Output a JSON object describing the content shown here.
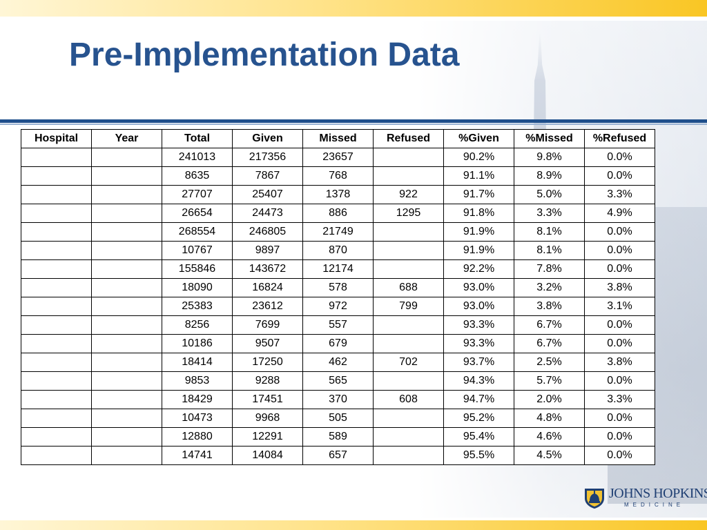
{
  "title": "Pre-Implementation Data",
  "colors": {
    "title": "#27538f",
    "rule": "#1f4f8c",
    "band": "#f9c624"
  },
  "table": {
    "headers": [
      "Hospital",
      "Year",
      "Total",
      "Given",
      "Missed",
      "Refused",
      "%Given",
      "%Missed",
      "%Refused"
    ],
    "rows": [
      [
        "",
        "",
        "241013",
        "217356",
        "23657",
        "",
        "90.2%",
        "9.8%",
        "0.0%"
      ],
      [
        "",
        "",
        "8635",
        "7867",
        "768",
        "",
        "91.1%",
        "8.9%",
        "0.0%"
      ],
      [
        "",
        "",
        "27707",
        "25407",
        "1378",
        "922",
        "91.7%",
        "5.0%",
        "3.3%"
      ],
      [
        "",
        "",
        "26654",
        "24473",
        "886",
        "1295",
        "91.8%",
        "3.3%",
        "4.9%"
      ],
      [
        "",
        "",
        "268554",
        "246805",
        "21749",
        "",
        "91.9%",
        "8.1%",
        "0.0%"
      ],
      [
        "",
        "",
        "10767",
        "9897",
        "870",
        "",
        "91.9%",
        "8.1%",
        "0.0%"
      ],
      [
        "",
        "",
        "155846",
        "143672",
        "12174",
        "",
        "92.2%",
        "7.8%",
        "0.0%"
      ],
      [
        "",
        "",
        "18090",
        "16824",
        "578",
        "688",
        "93.0%",
        "3.2%",
        "3.8%"
      ],
      [
        "",
        "",
        "25383",
        "23612",
        "972",
        "799",
        "93.0%",
        "3.8%",
        "3.1%"
      ],
      [
        "",
        "",
        "8256",
        "7699",
        "557",
        "",
        "93.3%",
        "6.7%",
        "0.0%"
      ],
      [
        "",
        "",
        "10186",
        "9507",
        "679",
        "",
        "93.3%",
        "6.7%",
        "0.0%"
      ],
      [
        "",
        "",
        "18414",
        "17250",
        "462",
        "702",
        "93.7%",
        "2.5%",
        "3.8%"
      ],
      [
        "",
        "",
        "9853",
        "9288",
        "565",
        "",
        "94.3%",
        "5.7%",
        "0.0%"
      ],
      [
        "",
        "",
        "18429",
        "17451",
        "370",
        "608",
        "94.7%",
        "2.0%",
        "3.3%"
      ],
      [
        "",
        "",
        "10473",
        "9968",
        "505",
        "",
        "95.2%",
        "4.8%",
        "0.0%"
      ],
      [
        "",
        "",
        "12880",
        "12291",
        "589",
        "",
        "95.4%",
        "4.6%",
        "0.0%"
      ],
      [
        "",
        "",
        "14741",
        "14084",
        "657",
        "",
        "95.5%",
        "4.5%",
        "0.0%"
      ]
    ]
  },
  "logo": {
    "name": "JOHNS HOPKINS",
    "subtitle": "MEDICINE",
    "icon": "dome-shield-icon"
  }
}
